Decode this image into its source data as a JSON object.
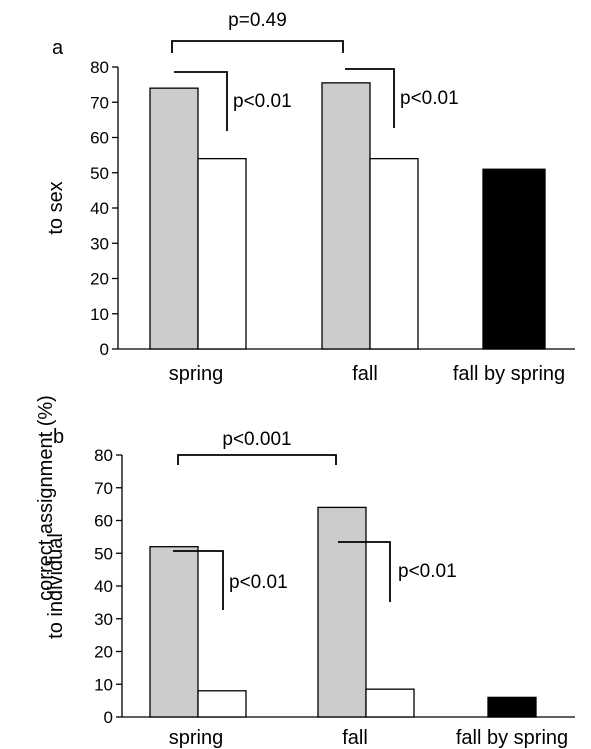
{
  "figure": {
    "shared_ylabel": "correct assignment (%)"
  },
  "chart_data": [
    {
      "type": "bar",
      "panel_label": "a",
      "ylabel": "to sex",
      "ylim": [
        0,
        80
      ],
      "yticks": [
        0,
        10,
        20,
        30,
        40,
        50,
        60,
        70,
        80
      ],
      "categories": [
        "spring",
        "fall",
        "fall by spring"
      ],
      "series": [
        {
          "values": [
            74,
            75.5,
            null
          ],
          "color": "#cccccc"
        },
        {
          "values": [
            54,
            54,
            null
          ],
          "color": "#ffffff"
        },
        {
          "values": [
            null,
            null,
            51
          ],
          "color": "#000000"
        }
      ],
      "annotations": [
        {
          "type": "bracket",
          "between": [
            "spring",
            "fall"
          ],
          "text": "p=0.49"
        },
        {
          "type": "pair",
          "category": "spring",
          "text": "p<0.01"
        },
        {
          "type": "pair",
          "category": "fall",
          "text": "p<0.01"
        }
      ]
    },
    {
      "type": "bar",
      "panel_label": "b",
      "ylabel": "to individual",
      "ylim": [
        0,
        80
      ],
      "yticks": [
        0,
        10,
        20,
        30,
        40,
        50,
        60,
        70,
        80
      ],
      "categories": [
        "spring",
        "fall",
        "fall by spring"
      ],
      "series": [
        {
          "values": [
            52,
            64,
            null
          ],
          "color": "#cccccc"
        },
        {
          "values": [
            8,
            8.5,
            null
          ],
          "color": "#ffffff"
        },
        {
          "values": [
            null,
            null,
            6
          ],
          "color": "#000000"
        }
      ],
      "annotations": [
        {
          "type": "bracket",
          "between": [
            "spring",
            "fall"
          ],
          "text": "p<0.001"
        },
        {
          "type": "pair",
          "category": "spring",
          "text": "p<0.01"
        },
        {
          "type": "pair",
          "category": "fall",
          "text": "p<0.01"
        }
      ]
    }
  ]
}
